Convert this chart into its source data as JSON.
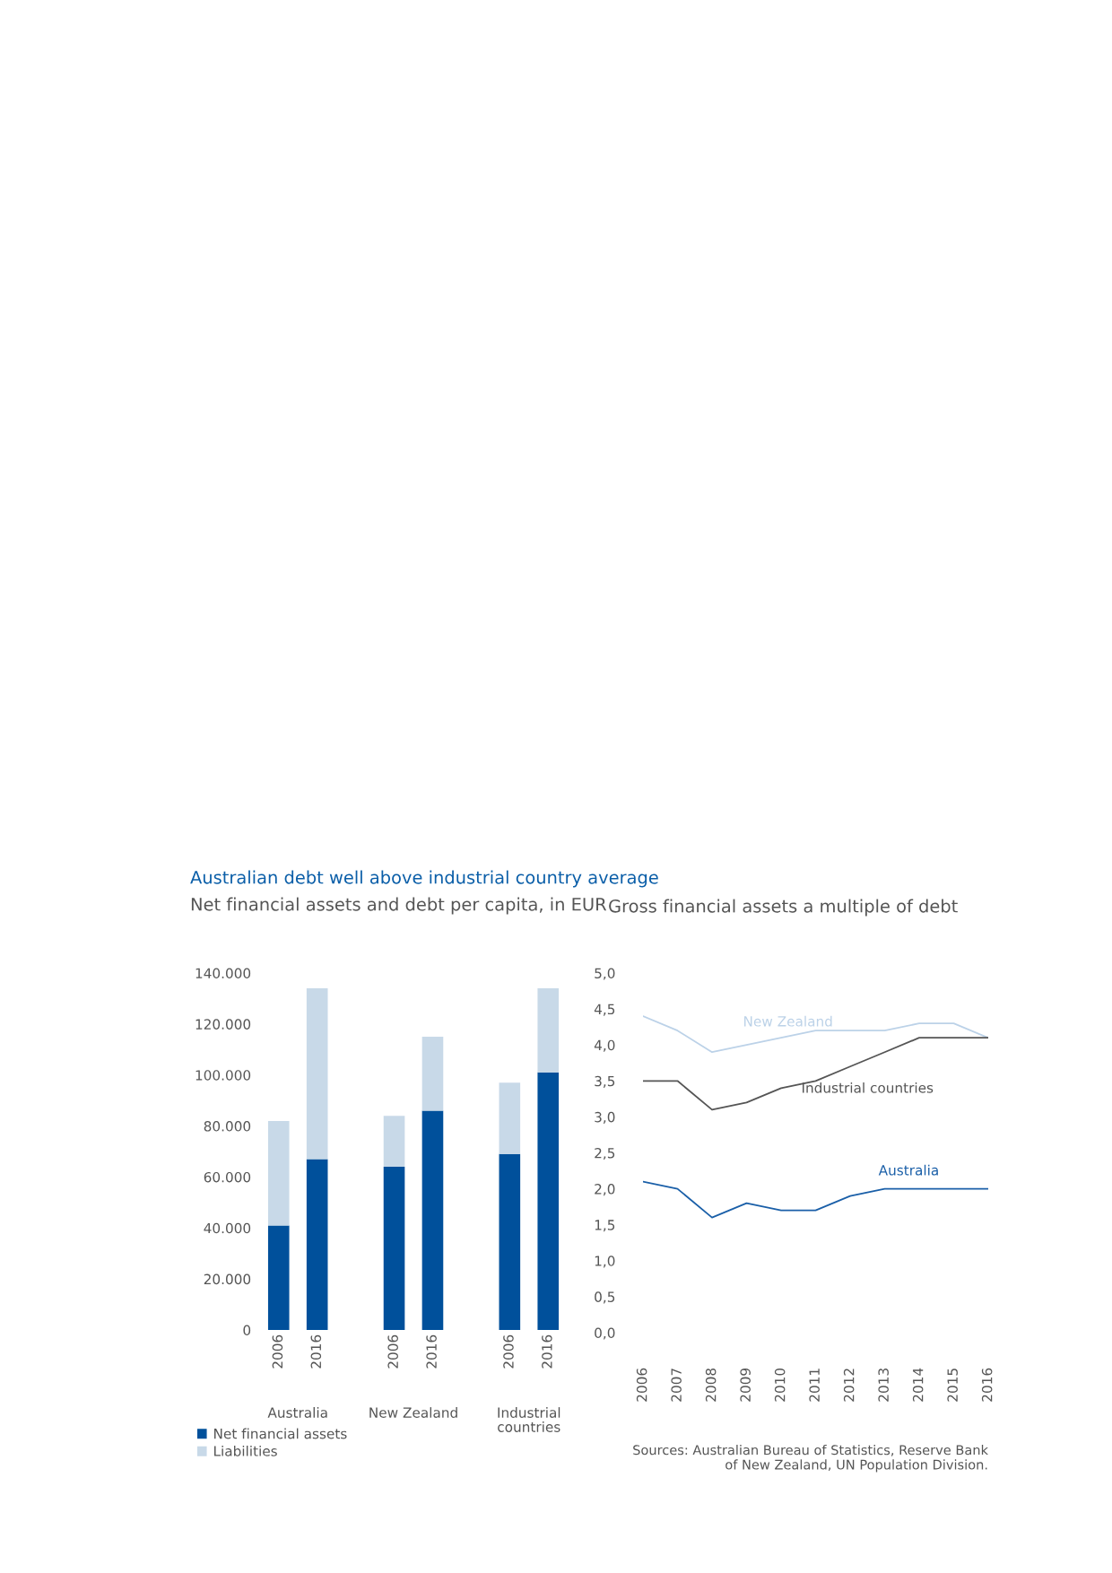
{
  "chart_data": [
    {
      "type": "bar",
      "title": "Australian debt well above industrial country average",
      "subtitle": "Net financial assets and debt per capita, in EUR",
      "categories": [
        "2006",
        "2016",
        "2006",
        "2016",
        "2006",
        "2016"
      ],
      "annotations": [
        "Australia",
        "New Zealand",
        "Industrial\ncountries"
      ],
      "stacked": true,
      "legend": "bottom left",
      "series": [
        {
          "name": "Net financial assets",
          "color": "#00509b",
          "values": [
            41000,
            67000,
            64000,
            86000,
            69000,
            101000
          ]
        },
        {
          "name": "Liabilities",
          "color": "#c8d9e8",
          "values": [
            41000,
            67000,
            20000,
            29000,
            28000,
            33000
          ]
        }
      ],
      "ylim": [
        0,
        140000
      ],
      "yticks": [
        {
          "value": 0,
          "label": "0"
        },
        {
          "value": 20000,
          "label": "20.000"
        },
        {
          "value": 40000,
          "label": "40.000"
        },
        {
          "value": 60000,
          "label": "60.000"
        },
        {
          "value": 80000,
          "label": "80.000"
        },
        {
          "value": 100000,
          "label": "100.000"
        },
        {
          "value": 120000,
          "label": "120.000"
        },
        {
          "value": 140000,
          "label": "140.000"
        }
      ]
    },
    {
      "type": "line",
      "title": "Gross financial assets a multiple of debt",
      "x": [
        2006,
        2007,
        2008,
        2009,
        2010,
        2011,
        2012,
        2013,
        2014,
        2015,
        2016
      ],
      "series": [
        {
          "name": "New Zealand",
          "color": "#bcd2e8",
          "values": [
            4.4,
            4.2,
            3.9,
            4.0,
            4.1,
            4.2,
            4.2,
            4.2,
            4.3,
            4.3,
            4.1
          ]
        },
        {
          "name": "Industrial countries",
          "color": "#555555",
          "values": [
            3.5,
            3.5,
            3.1,
            3.2,
            3.4,
            3.5,
            3.7,
            3.9,
            4.1,
            4.1,
            4.1
          ]
        },
        {
          "name": "Australia",
          "color": "#1a5fa8",
          "values": [
            2.1,
            2.0,
            1.6,
            1.8,
            1.7,
            1.7,
            1.9,
            2.0,
            2.0,
            2.0,
            2.0
          ]
        }
      ],
      "xlim": [
        2006,
        2016
      ],
      "xticks": [
        2006,
        2007,
        2008,
        2009,
        2010,
        2011,
        2012,
        2013,
        2014,
        2015,
        2016
      ],
      "ylim": [
        0,
        5
      ],
      "yticks": [
        {
          "value": 0,
          "label": "0,0"
        },
        {
          "value": 0.5,
          "label": "0,5"
        },
        {
          "value": 1,
          "label": "1,0"
        },
        {
          "value": 1.5,
          "label": "1,5"
        },
        {
          "value": 2,
          "label": "2,0"
        },
        {
          "value": 2.5,
          "label": "2,5"
        },
        {
          "value": 3,
          "label": "3,0"
        },
        {
          "value": 3.5,
          "label": "3,5"
        },
        {
          "value": 4,
          "label": "4,0"
        },
        {
          "value": 4.5,
          "label": "4,5"
        },
        {
          "value": 5,
          "label": "5,0"
        }
      ],
      "annotations": [
        "Sources: Australian Bureau of Statistics, Reserve Bank\nof New Zealand, UN Population Division."
      ]
    }
  ]
}
